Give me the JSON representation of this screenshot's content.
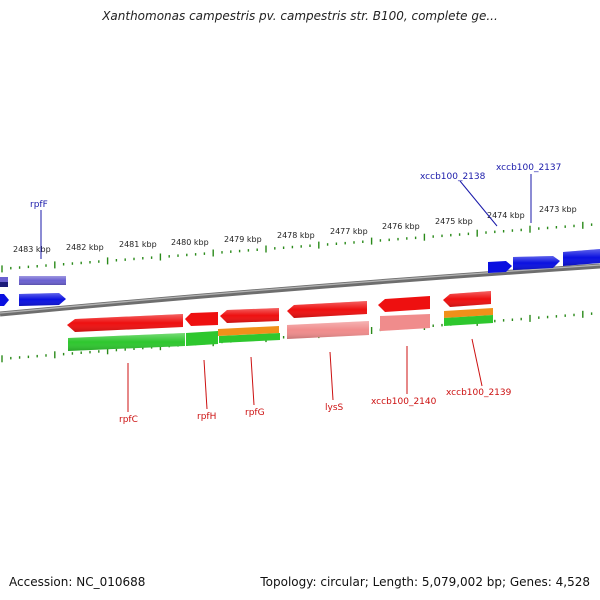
{
  "title": "Xanthomonas campestris pv. campestris str. B100, complete ge...",
  "footer": {
    "accession": "Accession: NC_010688",
    "topology": "Topology: circular; Length: 5,079,002 bp; Genes: 4,528"
  },
  "colors": {
    "forward_cds": "#0a10e0",
    "forward_other": "#6a60d0",
    "reverse_cds": "#ee1010",
    "reverse_pink": "#f08c8c",
    "orange": "#f0901a",
    "green": "#2ec72e",
    "tick": "#2a8a1a",
    "backbone": "#777777",
    "label_forward": "#1a1aaa",
    "label_reverse": "#cc1010"
  },
  "scale_labels": [
    "2483 kbp",
    "2482 kbp",
    "2481 kbp",
    "2480 kbp",
    "2479 kbp",
    "2478 kbp",
    "2477 kbp",
    "2476 kbp",
    "2475 kbp",
    "2474 kbp",
    "2473 kbp"
  ],
  "forward_gene_labels": [
    "rpfF",
    "xccb100_2138",
    "xccb100_2137"
  ],
  "reverse_gene_labels": [
    "rpfC",
    "rpfH",
    "rpfG",
    "lysS",
    "xccb100_2140",
    "xccb100_2139"
  ]
}
